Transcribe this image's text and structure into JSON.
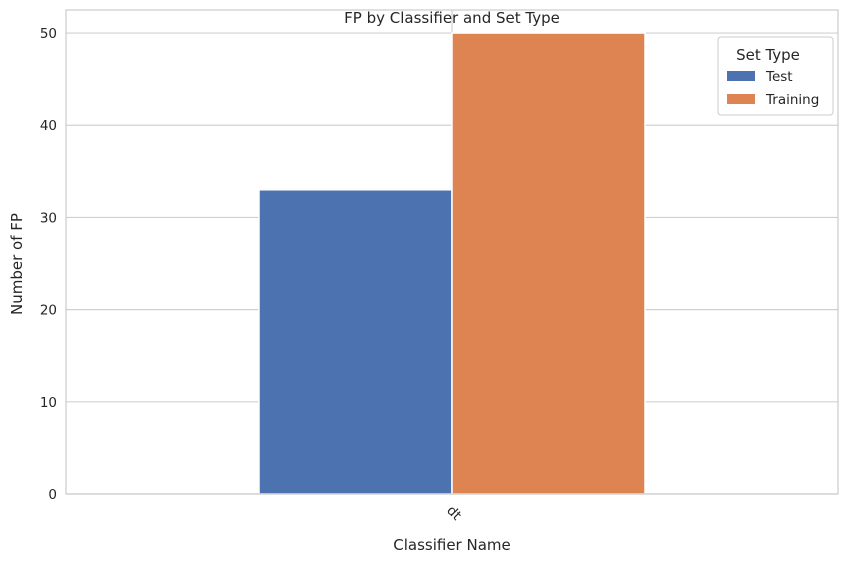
{
  "chart_data": {
    "type": "bar",
    "title": "FP by Classifier and Set Type",
    "xlabel": "Classifier Name",
    "ylabel": "Number of FP",
    "categories": [
      "dt"
    ],
    "series": [
      {
        "name": "Test",
        "values": [
          33
        ],
        "color": "#4c72b0"
      },
      {
        "name": "Training",
        "values": [
          50
        ],
        "color": "#dd8452"
      }
    ],
    "ylim": [
      0,
      52.5
    ],
    "yticks": [
      "0",
      "10",
      "20",
      "30",
      "40",
      "50"
    ],
    "grid": true,
    "legend": {
      "title": "Set Type",
      "placement": "top-right"
    },
    "x_tick_rotation": "45°"
  }
}
